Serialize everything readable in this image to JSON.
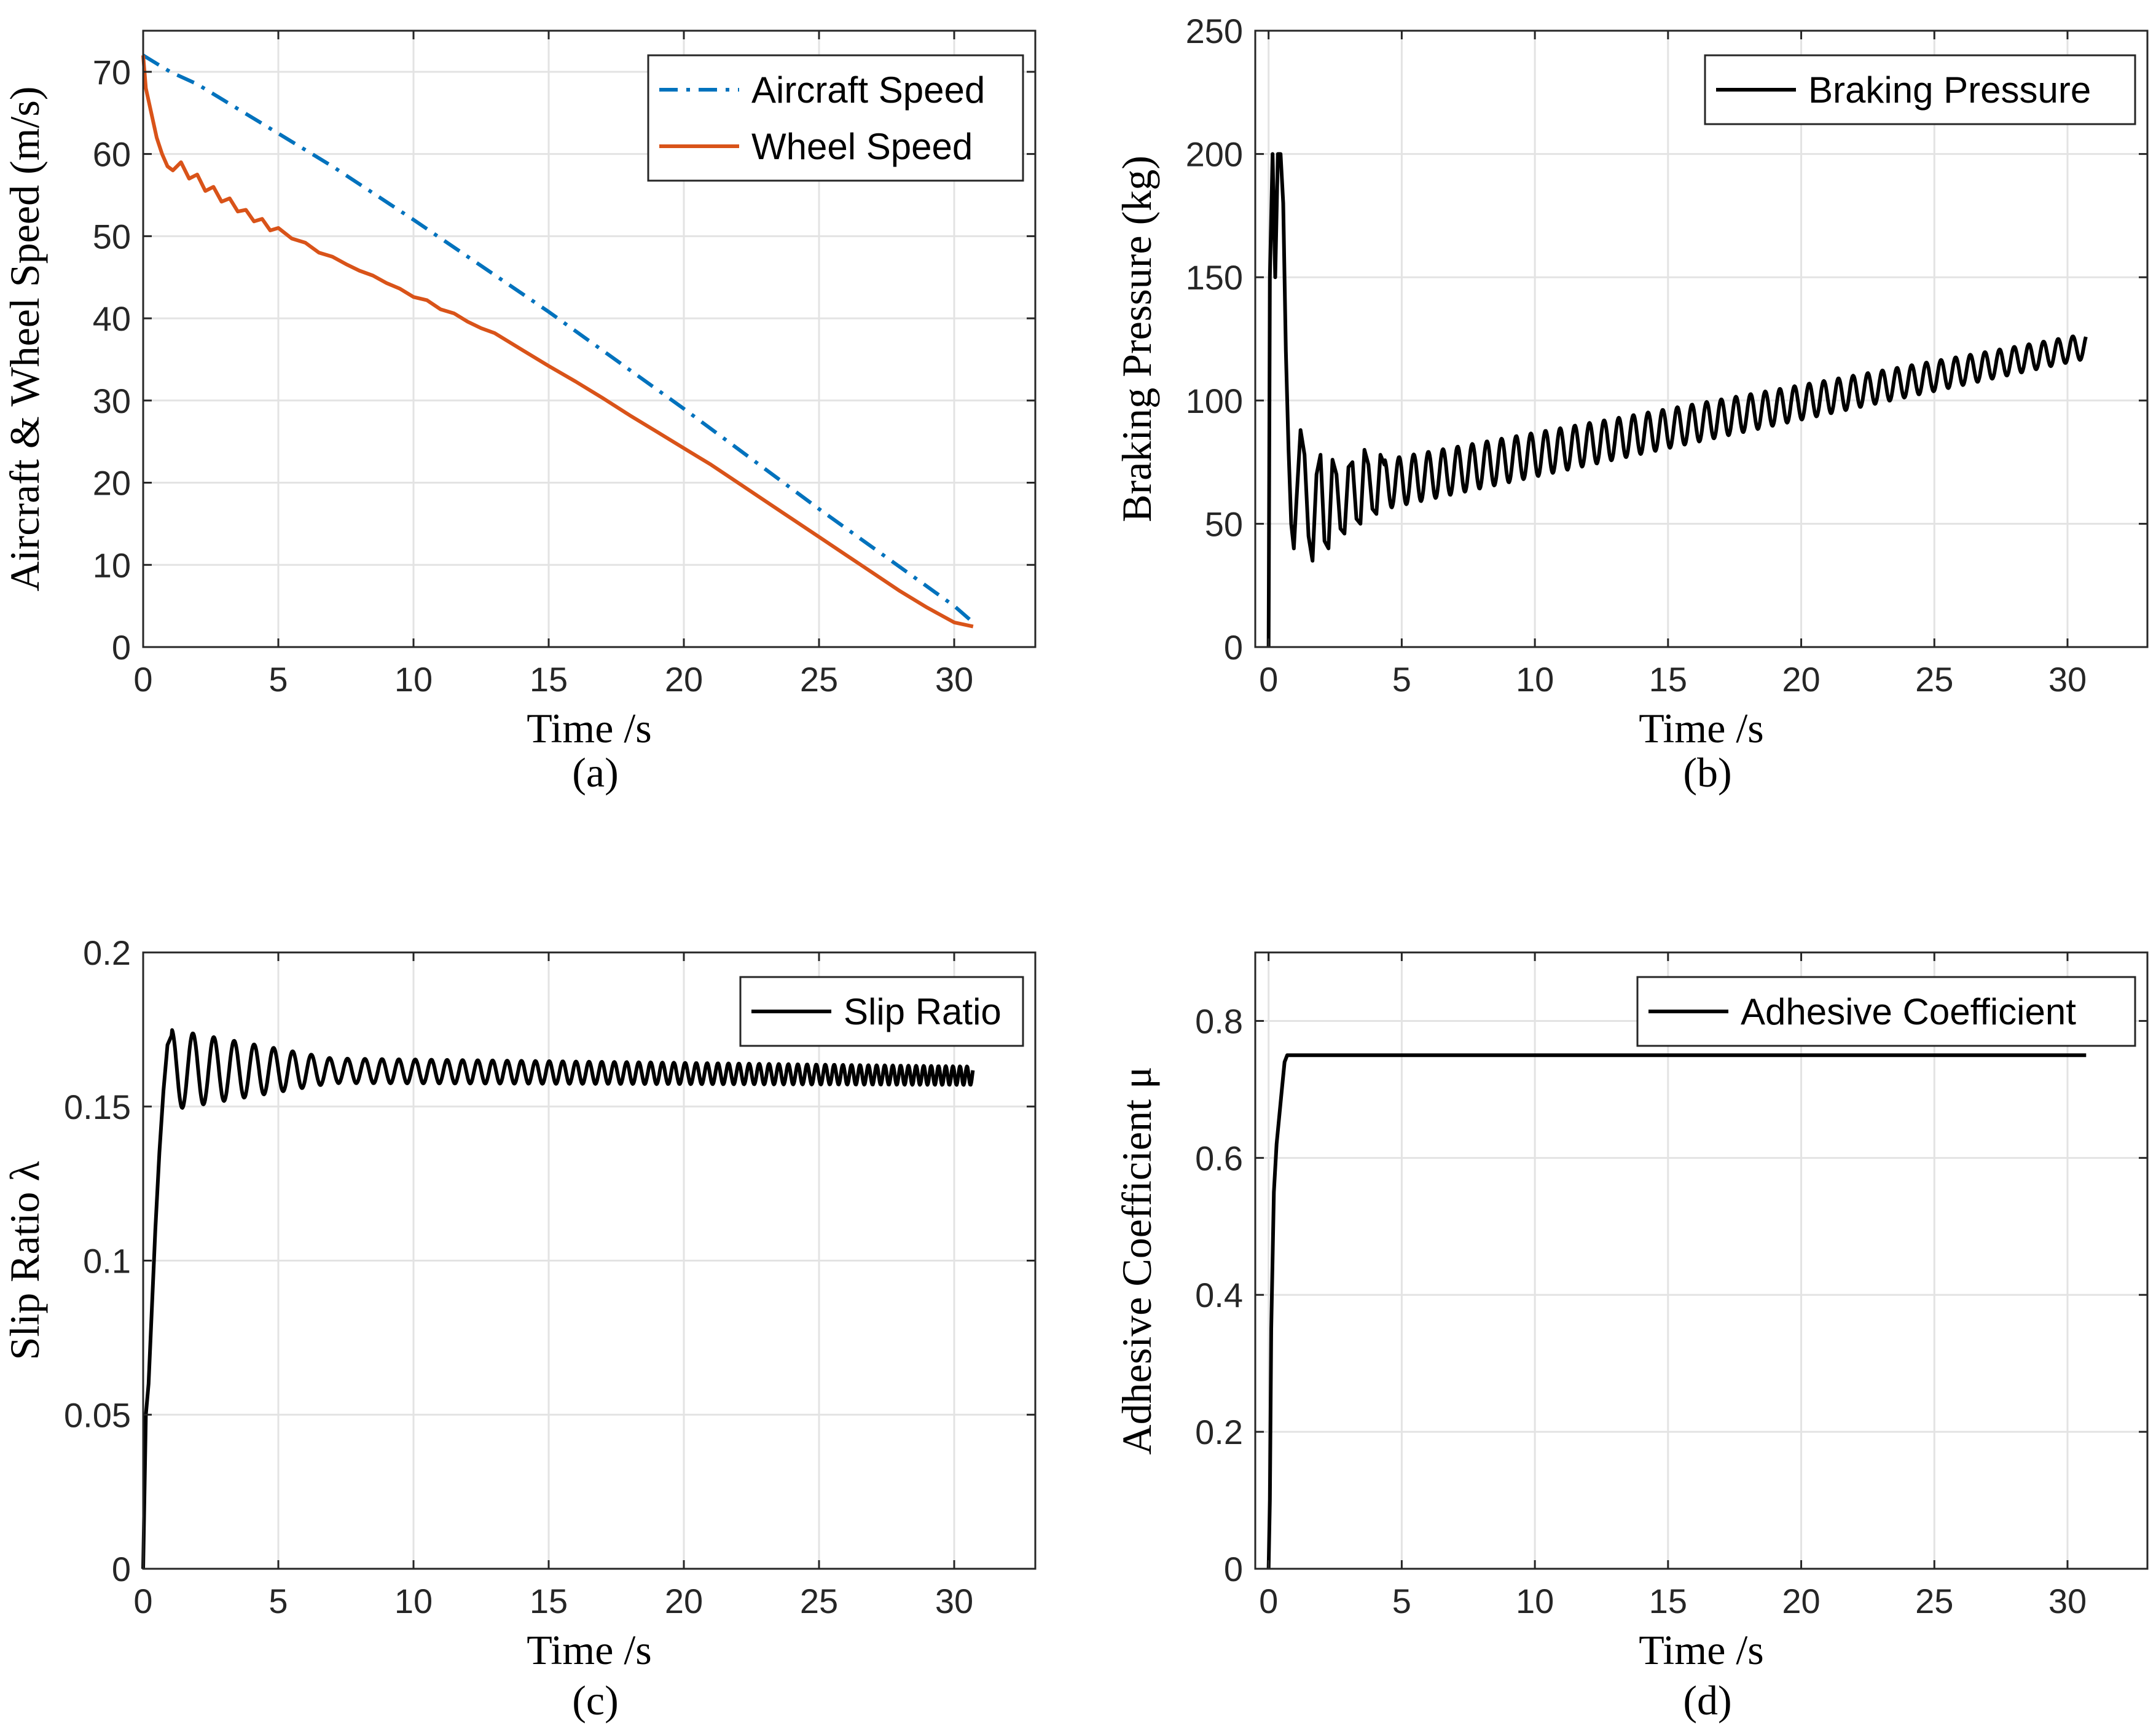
{
  "colors": {
    "aircraft": "#0072BD",
    "wheel": "#D95319",
    "black": "#000000"
  },
  "chart_data": [
    {
      "id": "a",
      "type": "line",
      "panel_label": "(a)",
      "xlabel": "Time /s",
      "ylabel": "Aircraft & Wheel Speed (m/s)",
      "xlim": [
        0,
        33
      ],
      "ylim": [
        0,
        75
      ],
      "xticks": [
        0,
        5,
        10,
        15,
        20,
        25,
        30
      ],
      "yticks": [
        0,
        10,
        20,
        30,
        40,
        50,
        60,
        70
      ],
      "legend_position": "top-right",
      "series": [
        {
          "name": "Aircraft Speed",
          "style": "dashdot",
          "color": "#0072BD",
          "x": [
            0,
            0.5,
            1,
            2,
            3,
            4,
            5,
            7,
            10,
            15,
            20,
            25,
            30,
            30.7
          ],
          "y": [
            72,
            71,
            70,
            68.5,
            66.5,
            64.5,
            62.5,
            58.5,
            52,
            40.8,
            29,
            16.8,
            5,
            3
          ]
        },
        {
          "name": "Wheel Speed",
          "style": "solid",
          "color": "#D95319",
          "x": [
            0,
            0.1,
            0.3,
            0.5,
            0.7,
            0.9,
            1.1,
            1.4,
            1.7,
            2.0,
            2.3,
            2.6,
            2.9,
            3.2,
            3.5,
            3.8,
            4.1,
            4.4,
            4.7,
            5.0,
            5.5,
            6.0,
            6.5,
            7.0,
            7.5,
            8.0,
            8.5,
            9.0,
            9.5,
            10.0,
            10.5,
            11.0,
            11.5,
            12.0,
            12.5,
            13.0,
            14.0,
            15.0,
            16.0,
            17.0,
            18.0,
            19.0,
            20.0,
            21.0,
            22.0,
            23.0,
            24.0,
            25.0,
            26.0,
            27.0,
            28.0,
            29.0,
            30.0,
            30.7
          ],
          "y": [
            72,
            68,
            65,
            62,
            60,
            58.5,
            58,
            59,
            57,
            57.5,
            55.5,
            56,
            54.2,
            54.6,
            53,
            53.2,
            51.8,
            52.1,
            50.7,
            51,
            49.7,
            49.2,
            48,
            47.5,
            46.6,
            45.8,
            45.2,
            44.3,
            43.6,
            42.6,
            42.2,
            41.1,
            40.6,
            39.6,
            38.8,
            38.2,
            36.2,
            34.2,
            32.3,
            30.3,
            28.2,
            26.2,
            24.2,
            22.2,
            20,
            17.8,
            15.6,
            13.4,
            11.2,
            9.0,
            6.8,
            4.8,
            3.0,
            2.5
          ]
        }
      ]
    },
    {
      "id": "b",
      "type": "line",
      "panel_label": "(b)",
      "xlabel": "Time /s",
      "ylabel": "Braking Pressure (kg)",
      "xlim": [
        -0.5,
        33
      ],
      "ylim": [
        0,
        250
      ],
      "xticks": [
        0,
        5,
        10,
        15,
        20,
        25,
        30
      ],
      "yticks": [
        0,
        50,
        100,
        150,
        200,
        250
      ],
      "legend_position": "top-right",
      "series": [
        {
          "name": "Braking Pressure",
          "style": "solid",
          "color": "#000000",
          "x": [
            0.0,
            0.05,
            0.15,
            0.25,
            0.35,
            0.45,
            0.55,
            0.65,
            0.75,
            0.85,
            0.95,
            1.05,
            1.2,
            1.35,
            1.5,
            1.65,
            1.8,
            1.95,
            2.1,
            2.25,
            2.4,
            2.55,
            2.7,
            2.85,
            3.0,
            3.15,
            3.3,
            3.45,
            3.6,
            3.75,
            3.9,
            4.05,
            4.2,
            4.35
          ],
          "y": [
            0,
            150,
            200,
            150,
            200,
            200,
            180,
            120,
            80,
            50,
            40,
            60,
            88,
            78,
            45,
            35,
            70,
            78,
            43,
            40,
            76,
            70,
            48,
            46,
            73,
            75,
            52,
            50,
            80,
            74,
            56,
            54,
            78,
            74
          ],
          "continuation": {
            "oscillation": {
              "t_start": 4.35,
              "t_end": 30.7,
              "period": 0.55,
              "mean_start": 66,
              "mean_end": 122,
              "amp_start": 10,
              "amp_end": 5
            }
          }
        }
      ]
    },
    {
      "id": "c",
      "type": "line",
      "panel_label": "(c)",
      "xlabel": "Time /s",
      "ylabel": "Slip Ratio λ",
      "xlim": [
        0,
        33
      ],
      "ylim": [
        0,
        0.2
      ],
      "xticks": [
        0,
        5,
        10,
        15,
        20,
        25,
        30
      ],
      "yticks": [
        0,
        0.05,
        0.1,
        0.15,
        0.2
      ],
      "ytick_labels": [
        "0",
        "0.05",
        "0.1",
        "0.15",
        "0.2"
      ],
      "legend_position": "top-right",
      "series": [
        {
          "name": "Slip Ratio",
          "style": "solid",
          "color": "#000000",
          "x": [
            0.0,
            0.1,
            0.2,
            0.3,
            0.45,
            0.6,
            0.75,
            0.9,
            1.05
          ],
          "y": [
            0,
            0.05,
            0.06,
            0.08,
            0.11,
            0.135,
            0.155,
            0.17,
            0.173
          ],
          "continuation": {
            "oscillation": {
              "t_start": 1.05,
              "t_end": 30.7,
              "period": 0.8,
              "period_end": 0.45,
              "mean_start": 0.162,
              "mean_end": 0.16,
              "amp_start": 0.013,
              "amp_mid": 0.004,
              "amp_mid_t": 7,
              "amp_end": 0.003
            }
          }
        }
      ]
    },
    {
      "id": "d",
      "type": "line",
      "panel_label": "(d)",
      "xlabel": "Time /s",
      "ylabel": "Adhesive Coefficient μ",
      "xlim": [
        -0.5,
        33
      ],
      "ylim": [
        0,
        0.9
      ],
      "xticks": [
        0,
        5,
        10,
        15,
        20,
        25,
        30
      ],
      "yticks": [
        0,
        0.2,
        0.4,
        0.6,
        0.8
      ],
      "ytick_labels": [
        "0",
        "0.2",
        "0.4",
        "0.6",
        "0.8"
      ],
      "legend_position": "top-right",
      "series": [
        {
          "name": "Adhesive Coefficient",
          "style": "solid",
          "color": "#000000",
          "x": [
            0.0,
            0.05,
            0.1,
            0.2,
            0.3,
            0.4,
            0.5,
            0.6,
            0.7,
            0.8,
            1.0,
            5,
            10,
            15,
            20,
            25,
            30,
            30.7
          ],
          "y": [
            0,
            0.1,
            0.35,
            0.55,
            0.62,
            0.66,
            0.7,
            0.74,
            0.75,
            0.75,
            0.75,
            0.75,
            0.75,
            0.75,
            0.75,
            0.75,
            0.75,
            0.75
          ]
        }
      ]
    }
  ]
}
